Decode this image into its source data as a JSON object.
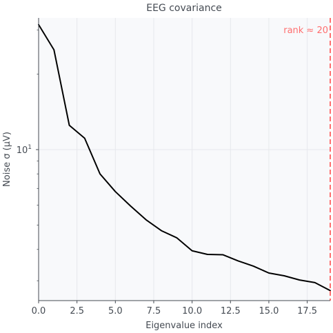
{
  "chart_data": {
    "type": "line",
    "title": "EEG covariance",
    "xlabel": "Eigenvalue index",
    "ylabel": "Noise σ (µV)",
    "x": [
      0,
      1,
      2,
      3,
      4,
      5,
      6,
      7,
      8,
      9,
      10,
      11,
      12,
      13,
      14,
      15,
      16,
      17,
      18,
      19
    ],
    "series": [
      {
        "values": [
          31.5,
          25.0,
          12.5,
          11.1,
          8.0,
          6.8,
          5.95,
          5.25,
          4.75,
          4.45,
          3.95,
          3.82,
          3.81,
          3.6,
          3.43,
          3.22,
          3.14,
          3.02,
          2.95,
          2.74
        ],
        "color": "#000000"
      }
    ],
    "xlim": [
      0,
      19
    ],
    "ylim": [
      2.5,
      33.5
    ],
    "yscale": "log",
    "xticks": [
      0,
      2.5,
      5,
      7.5,
      10,
      12.5,
      15,
      17.5
    ],
    "xtick_labels": [
      "0.0",
      "2.5",
      "5.0",
      "7.5",
      "10.0",
      "12.5",
      "15.0",
      "17.5"
    ],
    "yticks": [
      10
    ],
    "ytick_labels": [
      "10"
    ],
    "ytick_exponents": [
      "1"
    ],
    "grid": true,
    "legend": "none",
    "background_color": "#f8f9fb",
    "annotations": [
      {
        "type": "vline",
        "x": 19,
        "text": "rank ≈ 20",
        "color": "#ff6e6e",
        "linestyle": "dashed"
      }
    ]
  }
}
